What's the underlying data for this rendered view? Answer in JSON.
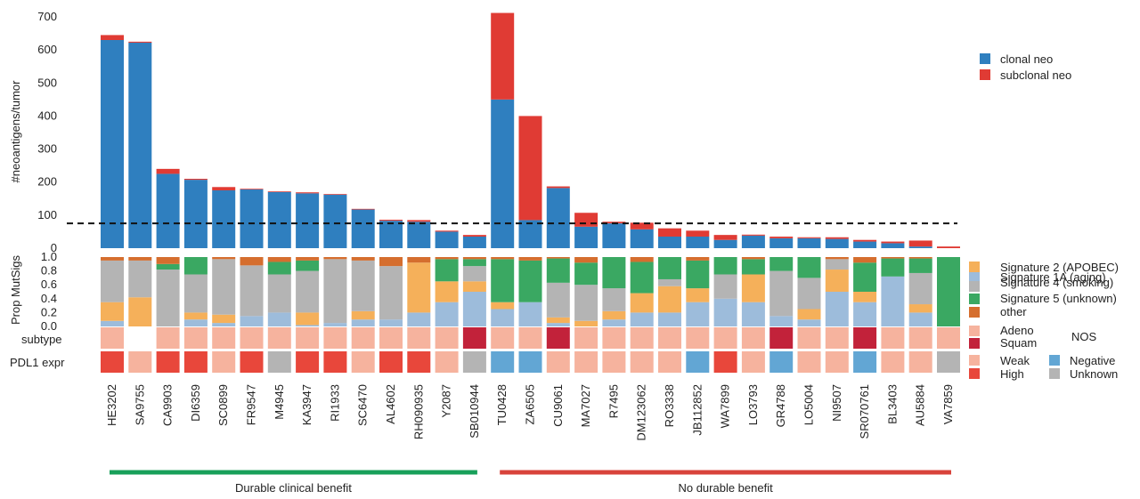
{
  "chart_data": {
    "type": "bar",
    "samples": [
      "HE3202",
      "SA9755",
      "CA9903",
      "DI6359",
      "SC0899",
      "FR9547",
      "M4945",
      "KA3947",
      "RI1933",
      "SC6470",
      "AL4602",
      "RH090935",
      "Y2087",
      "SB010944",
      "TU0428",
      "ZA6505",
      "CU9061",
      "MA7027",
      "R7495",
      "DM123062",
      "RO3338",
      "JB112852",
      "WA7899",
      "LO3793",
      "GR4788",
      "LO5004",
      "NI9507",
      "SR070761",
      "BL3403",
      "AU5884",
      "VA7859"
    ],
    "neoantigens": {
      "ylabel": "#neoantigens/tumor",
      "ylim": [
        0,
        700
      ],
      "yticks": [
        0,
        100,
        200,
        300,
        400,
        500,
        600,
        700
      ],
      "threshold": 75,
      "series": [
        {
          "name": "clonal neo",
          "color": "#2f7fbf",
          "values": [
            630,
            622,
            225,
            207,
            175,
            178,
            170,
            166,
            162,
            117,
            83,
            80,
            50,
            35,
            450,
            85,
            182,
            65,
            75,
            57,
            35,
            35,
            25,
            38,
            30,
            30,
            28,
            20,
            15,
            5,
            0
          ]
        },
        {
          "name": "subclonal neo",
          "color": "#e03b34",
          "values": [
            15,
            3,
            15,
            3,
            10,
            2,
            2,
            3,
            2,
            2,
            3,
            5,
            3,
            5,
            262,
            315,
            5,
            42,
            5,
            20,
            25,
            18,
            15,
            3,
            5,
            3,
            5,
            5,
            5,
            18,
            5
          ]
        }
      ]
    },
    "mutsigs": {
      "ylabel": "Prop MutSigs",
      "yticks": [
        "0.0",
        "0.2",
        "0.4",
        "0.6",
        "0.8",
        "1.0"
      ],
      "series": [
        {
          "name": "Signature 1A (aging)",
          "color": "#9dbcdb",
          "values": [
            0.08,
            0,
            0,
            0.1,
            0.05,
            0.15,
            0.2,
            0.02,
            0.05,
            0.1,
            0.1,
            0.2,
            0.35,
            0.5,
            0.25,
            0.35,
            0.05,
            0,
            0.1,
            0.2,
            0.2,
            0.35,
            0.4,
            0.35,
            0.15,
            0.1,
            0.5,
            0.35,
            0.72,
            0.2,
            0
          ]
        },
        {
          "name": "Signature 2 (APOBEC)",
          "color": "#f5b05a",
          "values": [
            0.27,
            0.42,
            0,
            0.1,
            0.12,
            0,
            0,
            0.18,
            0,
            0.12,
            0,
            0.72,
            0.3,
            0.15,
            0.1,
            0,
            0.08,
            0.08,
            0.12,
            0.28,
            0.38,
            0.2,
            0,
            0.4,
            0,
            0.15,
            0.32,
            0.15,
            0,
            0.12,
            0
          ]
        },
        {
          "name": "Signature 4 (smoking)",
          "color": "#b4b4b4",
          "values": [
            0.6,
            0.53,
            0.82,
            0.55,
            0.8,
            0.73,
            0.55,
            0.6,
            0.92,
            0.73,
            0.77,
            0,
            0,
            0.22,
            0,
            0,
            0.5,
            0.52,
            0.33,
            0,
            0.1,
            0,
            0.35,
            0,
            0.65,
            0.45,
            0.15,
            0,
            0,
            0.45,
            0
          ]
        },
        {
          "name": "Signature 5 (unknown)",
          "color": "#3aa862",
          "values": [
            0,
            0,
            0.08,
            0.25,
            0,
            0,
            0.18,
            0.15,
            0,
            0,
            0,
            0,
            0.32,
            0.1,
            0.62,
            0.6,
            0.35,
            0.32,
            0.45,
            0.45,
            0.32,
            0.4,
            0.25,
            0.22,
            0.2,
            0.3,
            0,
            0.42,
            0.26,
            0.21,
            1
          ]
        },
        {
          "name": "other",
          "color": "#d56e2e",
          "values": [
            0.05,
            0.05,
            0.1,
            0,
            0.03,
            0.12,
            0.07,
            0.05,
            0.03,
            0.05,
            0.13,
            0.08,
            0.03,
            0.03,
            0.03,
            0.05,
            0.02,
            0.08,
            0,
            0.07,
            0,
            0.05,
            0,
            0.03,
            0,
            0,
            0.03,
            0.08,
            0.02,
            0.02,
            0
          ]
        }
      ]
    },
    "subtype": {
      "label": "subtype",
      "categories": [
        {
          "key": "adeno",
          "name": "Adeno",
          "color": "#f6b39e"
        },
        {
          "key": "squam",
          "name": "Squam",
          "color": "#c2223a"
        },
        {
          "key": "nos",
          "name": "NOS",
          "color": "#ffffff"
        }
      ],
      "values": [
        "adeno",
        "nos",
        "adeno",
        "adeno",
        "adeno",
        "adeno",
        "adeno",
        "adeno",
        "adeno",
        "adeno",
        "adeno",
        "adeno",
        "adeno",
        "squam",
        "adeno",
        "adeno",
        "squam",
        "adeno",
        "adeno",
        "adeno",
        "adeno",
        "adeno",
        "adeno",
        "adeno",
        "squam",
        "adeno",
        "adeno",
        "squam",
        "adeno",
        "adeno",
        "adeno"
      ]
    },
    "pdl1": {
      "label": "PDL1 expr",
      "categories": [
        {
          "key": "weak",
          "name": "Weak",
          "color": "#f6b39e"
        },
        {
          "key": "high",
          "name": "High",
          "color": "#e8473b"
        },
        {
          "key": "negative",
          "name": "Negative",
          "color": "#62a6d4"
        },
        {
          "key": "unknown",
          "name": "Unknown",
          "color": "#b4b4b4"
        }
      ],
      "values": [
        "high",
        "weak",
        "high",
        "high",
        "weak",
        "high",
        "unknown",
        "high",
        "high",
        "weak",
        "high",
        "high",
        "weak",
        "unknown",
        "negative",
        "negative",
        "weak",
        "weak",
        "weak",
        "weak",
        "weak",
        "negative",
        "high",
        "weak",
        "negative",
        "weak",
        "weak",
        "negative",
        "weak",
        "weak",
        "unknown"
      ]
    },
    "groups": [
      {
        "label": "Durable clinical benefit",
        "color": "#18a05a",
        "first": 0,
        "last": 13
      },
      {
        "label": "No durable benefit",
        "color": "#d8433b",
        "first": 14,
        "last": 30
      }
    ]
  }
}
